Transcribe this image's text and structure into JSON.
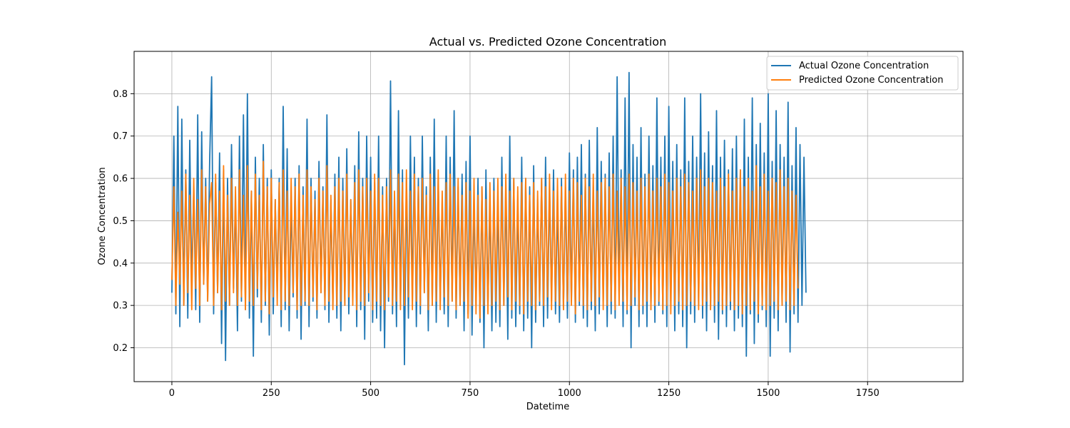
{
  "chart_data": {
    "type": "line",
    "title": "Actual vs. Predicted Ozone Concentration",
    "xlabel": "Datetime",
    "ylabel": "Ozone Concentration",
    "xlim": [
      -95,
      1990
    ],
    "ylim": [
      0.12,
      0.9
    ],
    "xticks": [
      0,
      250,
      500,
      750,
      1000,
      1250,
      1500,
      1750
    ],
    "xtick_labels": [
      "0",
      "250",
      "500",
      "750",
      "1000",
      "1250",
      "1500",
      "1750"
    ],
    "yticks": [
      0.2,
      0.3,
      0.4,
      0.5,
      0.6,
      0.7,
      0.8
    ],
    "ytick_labels": [
      "0.2",
      "0.3",
      "0.4",
      "0.5",
      "0.6",
      "0.7",
      "0.8"
    ],
    "grid": true,
    "legend_position": "top-right",
    "series": [
      {
        "name": "Actual Ozone Concentration",
        "color": "#1f77b4",
        "x_start": 0,
        "x_step": 5,
        "values": [
          0.33,
          0.7,
          0.28,
          0.77,
          0.25,
          0.74,
          0.3,
          0.62,
          0.27,
          0.69,
          0.34,
          0.58,
          0.29,
          0.75,
          0.26,
          0.71,
          0.35,
          0.6,
          0.31,
          0.64,
          0.84,
          0.28,
          0.59,
          0.33,
          0.66,
          0.21,
          0.62,
          0.17,
          0.6,
          0.3,
          0.68,
          0.34,
          0.55,
          0.24,
          0.7,
          0.31,
          0.75,
          0.29,
          0.8,
          0.27,
          0.57,
          0.18,
          0.65,
          0.32,
          0.6,
          0.26,
          0.68,
          0.3,
          0.6,
          0.23,
          0.62,
          0.28,
          0.55,
          0.33,
          0.6,
          0.25,
          0.77,
          0.29,
          0.67,
          0.24,
          0.55,
          0.32,
          0.6,
          0.27,
          0.63,
          0.22,
          0.58,
          0.3,
          0.74,
          0.25,
          0.6,
          0.31,
          0.57,
          0.27,
          0.64,
          0.33,
          0.58,
          0.29,
          0.75,
          0.26,
          0.55,
          0.3,
          0.61,
          0.27,
          0.65,
          0.24,
          0.6,
          0.3,
          0.67,
          0.28,
          0.55,
          0.32,
          0.63,
          0.25,
          0.71,
          0.29,
          0.6,
          0.22,
          0.7,
          0.31,
          0.65,
          0.26,
          0.59,
          0.27,
          0.7,
          0.24,
          0.58,
          0.2,
          0.6,
          0.31,
          0.83,
          0.28,
          0.55,
          0.25,
          0.76,
          0.3,
          0.62,
          0.16,
          0.6,
          0.27,
          0.7,
          0.31,
          0.65,
          0.25,
          0.6,
          0.28,
          0.7,
          0.33,
          0.58,
          0.24,
          0.65,
          0.3,
          0.74,
          0.26,
          0.6,
          0.31,
          0.55,
          0.28,
          0.7,
          0.25,
          0.65,
          0.31,
          0.76,
          0.27,
          0.58,
          0.3,
          0.61,
          0.24,
          0.64,
          0.28,
          0.7,
          0.23,
          0.55,
          0.3,
          0.6,
          0.26,
          0.58,
          0.2,
          0.62,
          0.29,
          0.55,
          0.24,
          0.6,
          0.26,
          0.55,
          0.25,
          0.65,
          0.3,
          0.58,
          0.22,
          0.7,
          0.27,
          0.6,
          0.25,
          0.55,
          0.28,
          0.65,
          0.24,
          0.6,
          0.27,
          0.58,
          0.2,
          0.63,
          0.26,
          0.55,
          0.3,
          0.6,
          0.25,
          0.65,
          0.27,
          0.58,
          0.31,
          0.62,
          0.28,
          0.55,
          0.26,
          0.6,
          0.29,
          0.58,
          0.27,
          0.66,
          0.31,
          0.62,
          0.26,
          0.65,
          0.3,
          0.68,
          0.27,
          0.61,
          0.25,
          0.69,
          0.29,
          0.58,
          0.24,
          0.72,
          0.28,
          0.64,
          0.31,
          0.61,
          0.25,
          0.66,
          0.28,
          0.7,
          0.27,
          0.84,
          0.32,
          0.62,
          0.25,
          0.79,
          0.28,
          0.85,
          0.2,
          0.68,
          0.3,
          0.65,
          0.25,
          0.72,
          0.28,
          0.61,
          0.25,
          0.7,
          0.29,
          0.63,
          0.26,
          0.79,
          0.3,
          0.65,
          0.28,
          0.7,
          0.25,
          0.77,
          0.31,
          0.64,
          0.24,
          0.68,
          0.28,
          0.62,
          0.25,
          0.79,
          0.2,
          0.64,
          0.28,
          0.7,
          0.26,
          0.65,
          0.3,
          0.8,
          0.27,
          0.66,
          0.24,
          0.71,
          0.29,
          0.63,
          0.26,
          0.76,
          0.22,
          0.65,
          0.28,
          0.69,
          0.25,
          0.62,
          0.29,
          0.67,
          0.24,
          0.7,
          0.27,
          0.62,
          0.25,
          0.74,
          0.18,
          0.65,
          0.28,
          0.79,
          0.21,
          0.68,
          0.26,
          0.73,
          0.29,
          0.66,
          0.25,
          0.8,
          0.18,
          0.64,
          0.27,
          0.76,
          0.24,
          0.68,
          0.3,
          0.65,
          0.26,
          0.78,
          0.19,
          0.63,
          0.28,
          0.72,
          0.26,
          0.68,
          0.3,
          0.65,
          0.33
        ]
      },
      {
        "name": "Predicted Ozone Concentration",
        "color": "#ff7f0e",
        "x_start": 0,
        "x_step": 5,
        "values": [
          0.36,
          0.58,
          0.3,
          0.52,
          0.35,
          0.57,
          0.3,
          0.61,
          0.33,
          0.56,
          0.29,
          0.6,
          0.34,
          0.55,
          0.3,
          0.62,
          0.35,
          0.58,
          0.31,
          0.54,
          0.59,
          0.3,
          0.61,
          0.33,
          0.57,
          0.29,
          0.63,
          0.31,
          0.56,
          0.3,
          0.6,
          0.33,
          0.58,
          0.3,
          0.62,
          0.32,
          0.56,
          0.29,
          0.63,
          0.31,
          0.57,
          0.3,
          0.61,
          0.34,
          0.56,
          0.29,
          0.64,
          0.31,
          0.58,
          0.28,
          0.6,
          0.32,
          0.55,
          0.3,
          0.59,
          0.29,
          0.62,
          0.31,
          0.57,
          0.3,
          0.6,
          0.33,
          0.58,
          0.29,
          0.61,
          0.3,
          0.56,
          0.31,
          0.62,
          0.3,
          0.58,
          0.32,
          0.55,
          0.29,
          0.6,
          0.33,
          0.57,
          0.3,
          0.63,
          0.31,
          0.56,
          0.29,
          0.58,
          0.3,
          0.6,
          0.31,
          0.57,
          0.3,
          0.61,
          0.32,
          0.55,
          0.3,
          0.59,
          0.29,
          0.62,
          0.31,
          0.58,
          0.3,
          0.6,
          0.33,
          0.57,
          0.29,
          0.61,
          0.31,
          0.6,
          0.3,
          0.56,
          0.29,
          0.58,
          0.32,
          0.62,
          0.3,
          0.57,
          0.31,
          0.61,
          0.29,
          0.59,
          0.3,
          0.62,
          0.32,
          0.57,
          0.29,
          0.61,
          0.31,
          0.58,
          0.3,
          0.6,
          0.33,
          0.56,
          0.29,
          0.61,
          0.3,
          0.58,
          0.31,
          0.62,
          0.29,
          0.57,
          0.32,
          0.59,
          0.3,
          0.61,
          0.31,
          0.58,
          0.29,
          0.6,
          0.3,
          0.56,
          0.31,
          0.59,
          0.27,
          0.57,
          0.3,
          0.6,
          0.28,
          0.56,
          0.27,
          0.58,
          0.3,
          0.55,
          0.28,
          0.59,
          0.3,
          0.57,
          0.31,
          0.6,
          0.29,
          0.58,
          0.3,
          0.61,
          0.32,
          0.57,
          0.29,
          0.6,
          0.31,
          0.58,
          0.3,
          0.59,
          0.28,
          0.6,
          0.31,
          0.56,
          0.3,
          0.59,
          0.29,
          0.57,
          0.31,
          0.6,
          0.3,
          0.58,
          0.32,
          0.61,
          0.29,
          0.57,
          0.31,
          0.6,
          0.3,
          0.58,
          0.29,
          0.61,
          0.31,
          0.57,
          0.3,
          0.6,
          0.28,
          0.59,
          0.31,
          0.56,
          0.3,
          0.6,
          0.29,
          0.58,
          0.31,
          0.61,
          0.3,
          0.57,
          0.32,
          0.59,
          0.29,
          0.6,
          0.3,
          0.58,
          0.31,
          0.61,
          0.29,
          0.57,
          0.3,
          0.6,
          0.31,
          0.58,
          0.29,
          0.61,
          0.3,
          0.59,
          0.32,
          0.57,
          0.29,
          0.6,
          0.3,
          0.58,
          0.31,
          0.61,
          0.29,
          0.57,
          0.3,
          0.6,
          0.31,
          0.58,
          0.29,
          0.61,
          0.3,
          0.59,
          0.28,
          0.57,
          0.3,
          0.6,
          0.31,
          0.58,
          0.29,
          0.61,
          0.3,
          0.59,
          0.31,
          0.57,
          0.3,
          0.6,
          0.29,
          0.62,
          0.3,
          0.58,
          0.31,
          0.6,
          0.29,
          0.59,
          0.3,
          0.57,
          0.31,
          0.6,
          0.29,
          0.58,
          0.3,
          0.61,
          0.31,
          0.57,
          0.29,
          0.6,
          0.3,
          0.62,
          0.28,
          0.58,
          0.3,
          0.6,
          0.29,
          0.57,
          0.31,
          0.63,
          0.28,
          0.58,
          0.3,
          0.61,
          0.29,
          0.57,
          0.3,
          0.6,
          0.31,
          0.59,
          0.29,
          0.62,
          0.3,
          0.58,
          0.31,
          0.6,
          0.29,
          0.57,
          0.3,
          0.56,
          0.34
        ]
      }
    ]
  }
}
